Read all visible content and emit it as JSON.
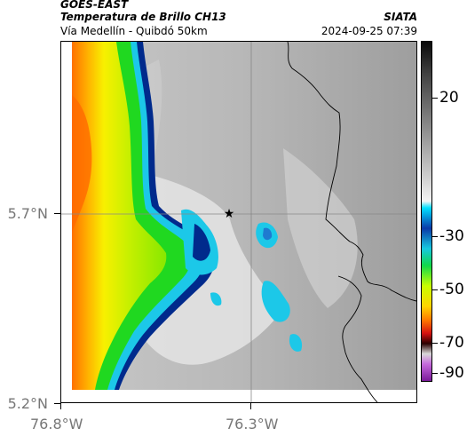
{
  "header": {
    "satellite": "GOES-EAST",
    "product": "Temperatura de Brillo CH13",
    "route": "Vía Medellín - Quibdó 50km",
    "org": "SIATA",
    "datetime": "2024-09-25 07:39"
  },
  "axes": {
    "lat_labels": [
      "5.7°N",
      "5.2°N"
    ],
    "lon_labels": [
      "76.8°W",
      "76.3°W"
    ]
  },
  "colorbar": {
    "labels": [
      "20",
      "-30",
      "-50",
      "-70",
      "-90"
    ]
  },
  "colors": {
    "cloud_warm": "#a8a8a8",
    "cloud_cold": "#d8d8d8",
    "deep_blue": "#002a8c",
    "cyan": "#1cc8e8",
    "green": "#20d820",
    "yellow_green": "#c8f000",
    "yellow": "#f8f000",
    "orange": "#ff6a00"
  }
}
